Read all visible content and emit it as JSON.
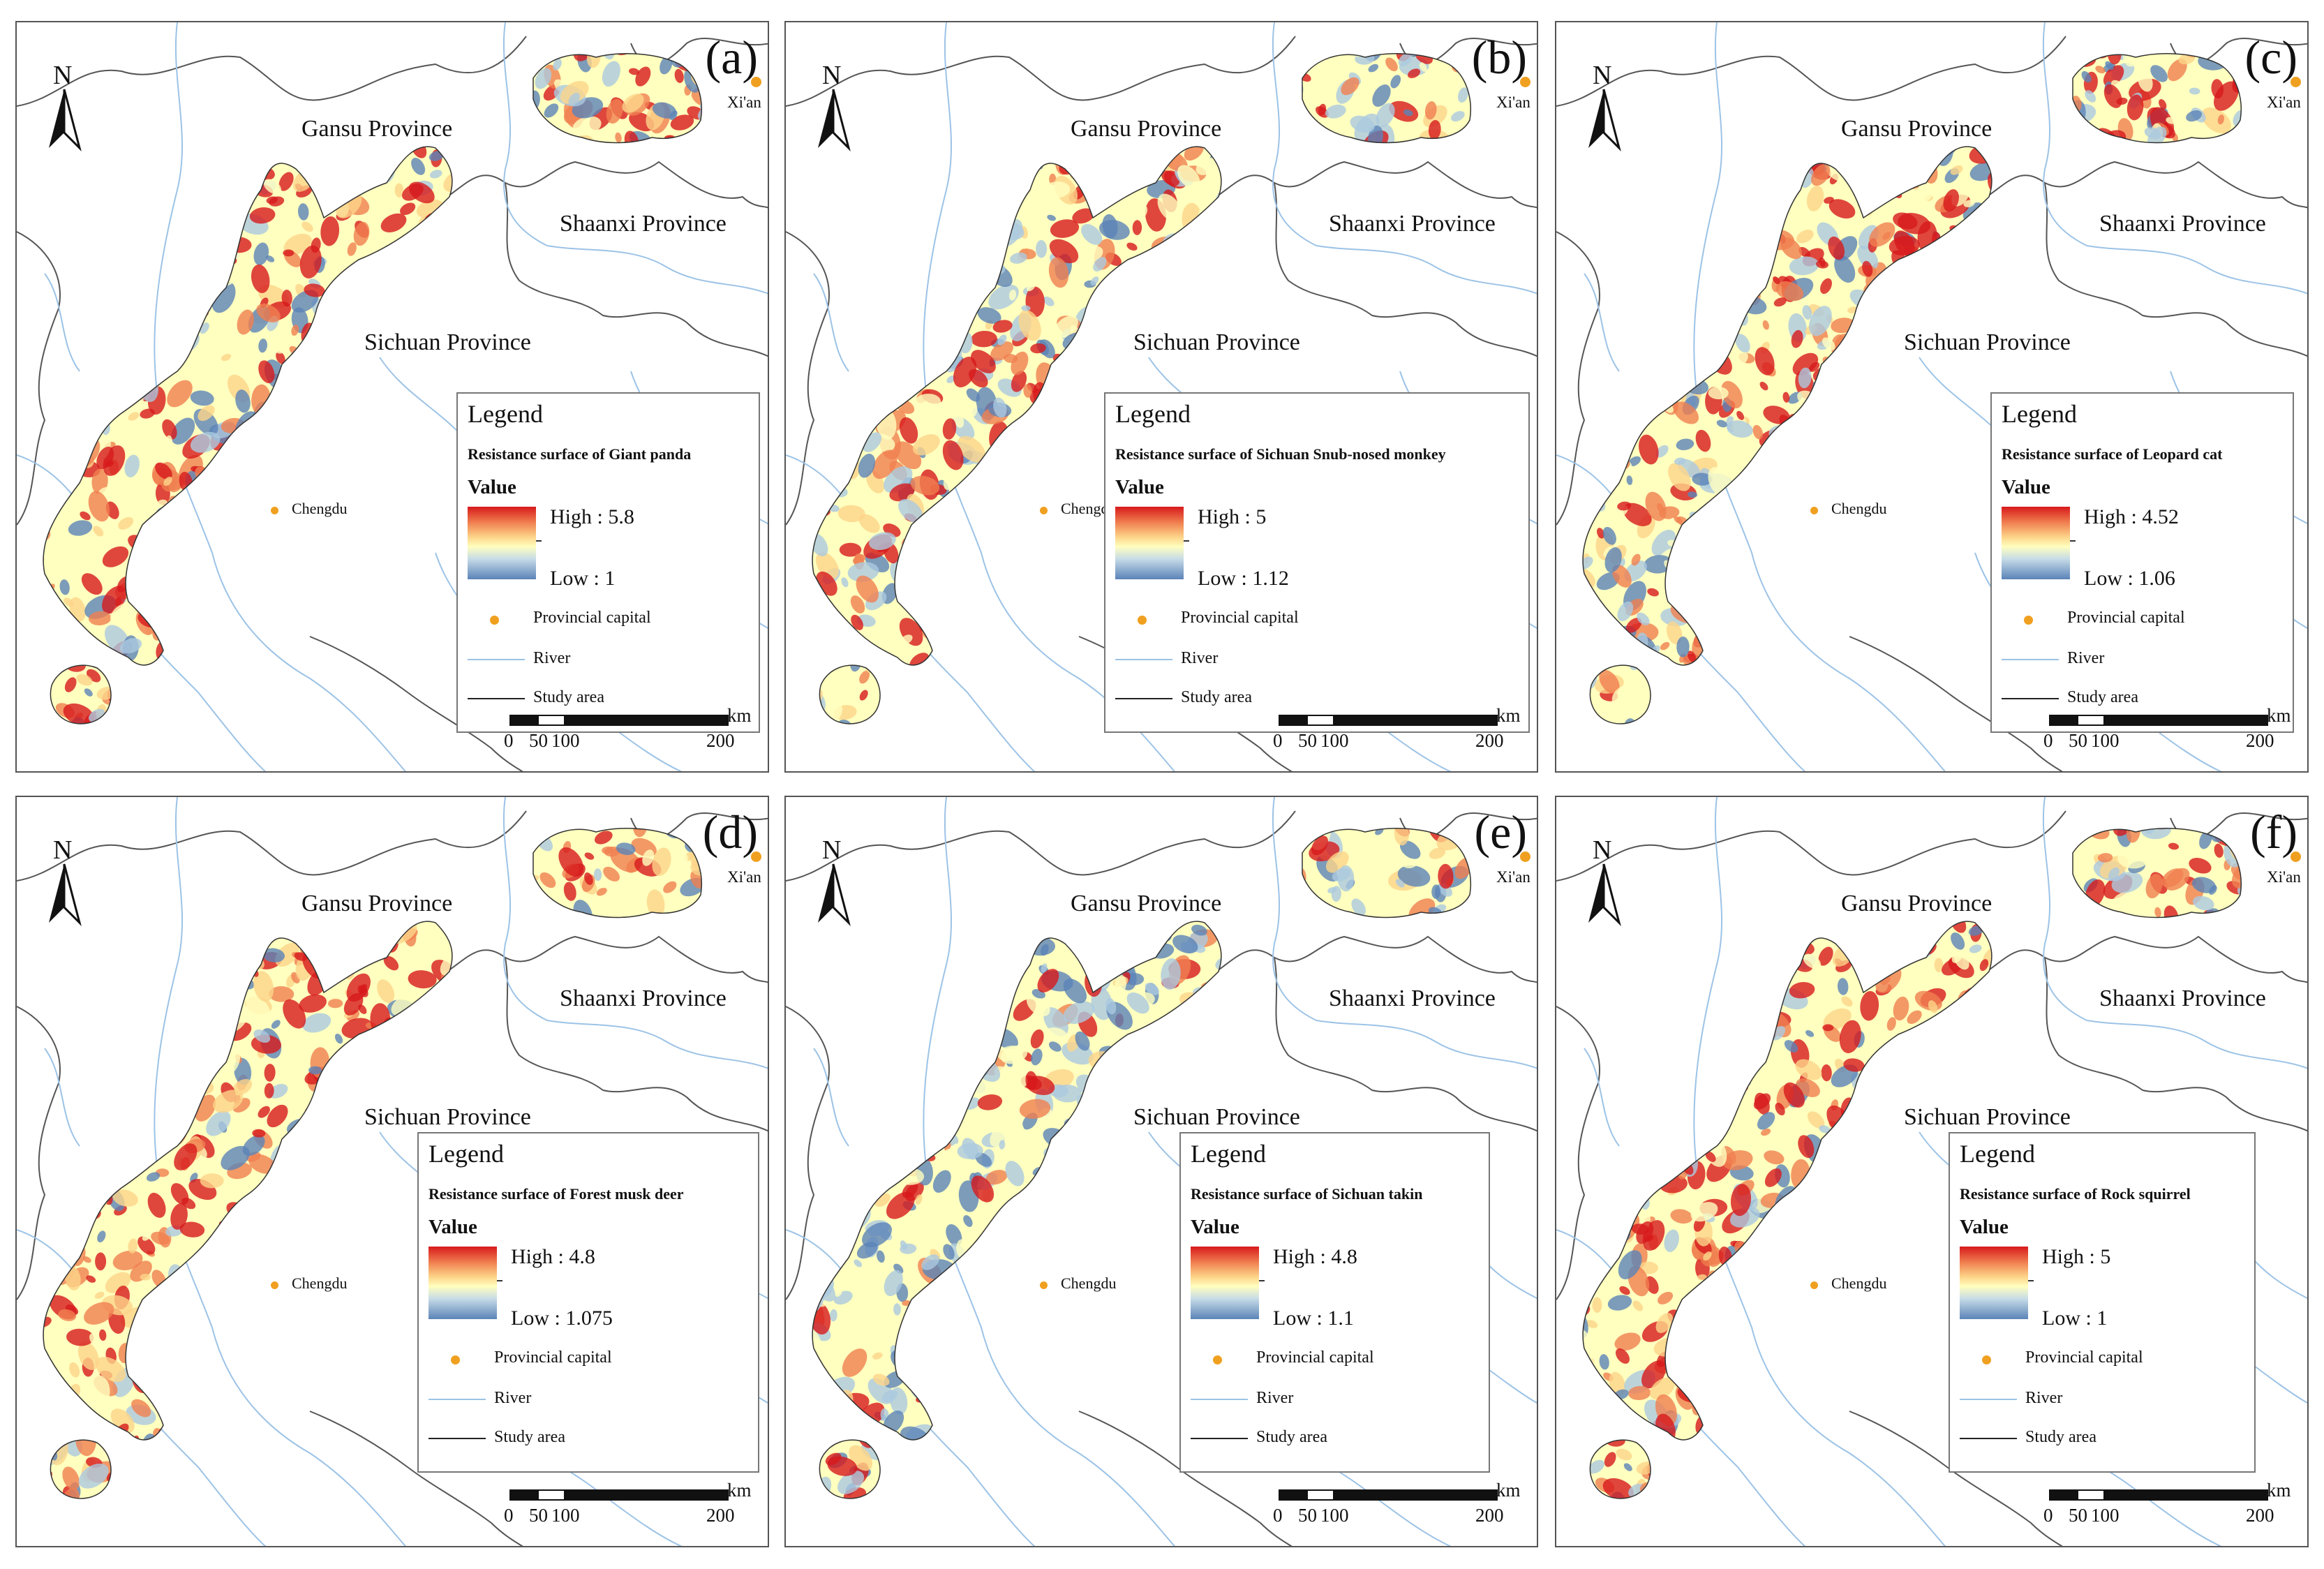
{
  "panels": [
    {
      "label": "(a)",
      "legend_title": "Legend",
      "subtitle": "Resistance surface of Giant panda",
      "value_label": "Value",
      "high": "High : 5.8",
      "low": "Low : 1",
      "palette": [
        "#d7191c",
        "#f08050",
        "#fdd58a",
        "#ffffbf",
        "#abc9e0",
        "#5b83b8"
      ],
      "bias": 0.58
    },
    {
      "label": "(b)",
      "legend_title": "Legend",
      "subtitle": "Resistance surface of Sichuan Snub-nosed monkey",
      "value_label": "Value",
      "high": "High : 5",
      "low": "Low : 1.12",
      "palette": [
        "#d7191c",
        "#f08050",
        "#fdd58a",
        "#ffffbf",
        "#abc9e0",
        "#5b83b8"
      ],
      "bias": 0.42
    },
    {
      "label": "(c)",
      "legend_title": "Legend",
      "subtitle": "Resistance surface of Leopard cat",
      "value_label": "Value",
      "high": "High : 4.52",
      "low": "Low : 1.06",
      "palette": [
        "#d7191c",
        "#f08050",
        "#fdd58a",
        "#ffffbf",
        "#abc9e0",
        "#5b83b8"
      ],
      "bias": 0.55
    },
    {
      "label": "(d)",
      "legend_title": "Legend",
      "subtitle": "Resistance surface of Forest musk deer",
      "value_label": "Value",
      "high": "High : 4.8",
      "low": "Low : 1.075",
      "palette": [
        "#d7191c",
        "#f08050",
        "#fdd58a",
        "#ffffbf",
        "#abc9e0",
        "#5b83b8"
      ],
      "bias": 0.72
    },
    {
      "label": "(e)",
      "legend_title": "Legend",
      "subtitle": "Resistance surface of Sichuan takin",
      "value_label": "Value",
      "high": "High : 4.8",
      "low": "Low : 1.1",
      "palette": [
        "#d7191c",
        "#f08050",
        "#fdd58a",
        "#ffffbf",
        "#abc9e0",
        "#5b83b8"
      ],
      "bias": 0.32
    },
    {
      "label": "(f)",
      "legend_title": "Legend",
      "subtitle": "Resistance surface of Rock squirrel",
      "value_label": "Value",
      "high": "High : 5",
      "low": "Low : 1",
      "palette": [
        "#d7191c",
        "#f08050",
        "#fdd58a",
        "#ffffbf",
        "#abc9e0",
        "#5b83b8"
      ],
      "bias": 0.62
    }
  ],
  "map": {
    "gansu": "Gansu Province",
    "shaanxi": "Shaanxi Province",
    "sichuan": "Sichuan Province",
    "chengdu": "Chengdu",
    "xian": "Xi'an",
    "north": "N",
    "legend_capital": "Provincial capital",
    "legend_river": "River",
    "legend_study": "Study area",
    "scale": {
      "ticks": [
        "0",
        "50",
        "100",
        "200"
      ],
      "unit": "km"
    }
  },
  "colors": {
    "river": "#9cc3e6",
    "boundary": "#555555",
    "capital": "#f0a020"
  }
}
